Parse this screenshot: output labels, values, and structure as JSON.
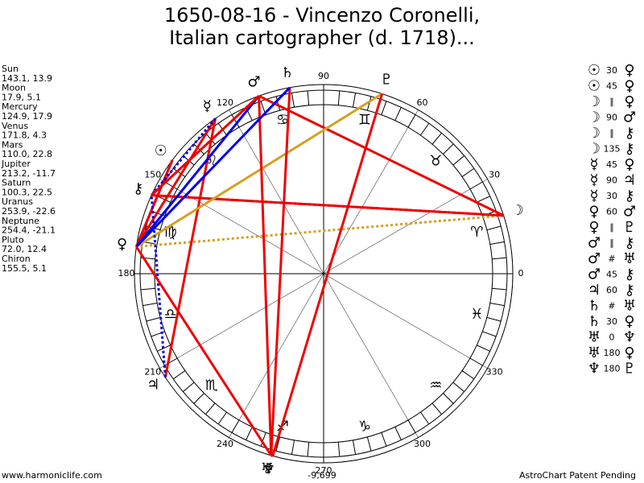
{
  "title": [
    "1650-08-16 - Vincenzo Coronelli,",
    "Italian cartographer (d. 1718)..."
  ],
  "planets": [
    {
      "name": "Sun",
      "glyph": "☉",
      "pos": "143.1, 13.9"
    },
    {
      "name": "Moon",
      "glyph": "☽",
      "pos": "17.9, 5.1"
    },
    {
      "name": "Mercury",
      "glyph": "☿",
      "pos": "124.9, 17.9"
    },
    {
      "name": "Venus",
      "glyph": "♀",
      "pos": "171.8, 4.3"
    },
    {
      "name": "Mars",
      "glyph": "♂",
      "pos": "110.0, 22.8"
    },
    {
      "name": "Jupiter",
      "glyph": "♃",
      "pos": "213.2, -11.7"
    },
    {
      "name": "Saturn",
      "glyph": "♄",
      "pos": "100.3, 22.5"
    },
    {
      "name": "Uranus",
      "glyph": "♅",
      "pos": "253.9, -22.6"
    },
    {
      "name": "Neptune",
      "glyph": "♆",
      "pos": "254.4, -21.1"
    },
    {
      "name": "Pluto",
      "glyph": "♇",
      "pos": "72.0, 12.4"
    },
    {
      "name": "Chiron",
      "glyph": "⚷",
      "pos": "155.5, 5.1"
    }
  ],
  "aspects": [
    {
      "a": "☉",
      "aspect": "30",
      "b": "♀",
      "color": "#0000ee"
    },
    {
      "a": "☉",
      "aspect": "45",
      "b": "♀",
      "color": "#ee0000"
    },
    {
      "a": "☽",
      "aspect": "∥",
      "b": "♀",
      "color": "#d4a020"
    },
    {
      "a": "☽",
      "aspect": "90",
      "b": "♂",
      "color": "#ee0000"
    },
    {
      "a": "☽",
      "aspect": "∥",
      "b": "⚷",
      "color": "#ee0000"
    },
    {
      "a": "☽",
      "aspect": "135",
      "b": "⚷",
      "color": "#ee0000"
    },
    {
      "a": "☿",
      "aspect": "45",
      "b": "♀",
      "color": "#ee0000"
    },
    {
      "a": "☿",
      "aspect": "90",
      "b": "♃",
      "color": "#ee0000"
    },
    {
      "a": "☿",
      "aspect": "30",
      "b": "⚷",
      "color": "#0000ee"
    },
    {
      "a": "♀",
      "aspect": "60",
      "b": "♂",
      "color": "#0000ee"
    },
    {
      "a": "♀",
      "aspect": "∥",
      "b": "♇",
      "color": "#d4a020"
    },
    {
      "a": "♂",
      "aspect": "∥",
      "b": "⚷",
      "color": "#ee0000"
    },
    {
      "a": "♂",
      "aspect": "#",
      "b": "♅",
      "color": "#ee0000"
    },
    {
      "a": "♂",
      "aspect": "45",
      "b": "⚷",
      "color": "#ee0000"
    },
    {
      "a": "♃",
      "aspect": "60",
      "b": "⚷",
      "color": "#0000ee"
    },
    {
      "a": "♄",
      "aspect": "#",
      "b": "♅",
      "color": "#ee0000"
    },
    {
      "a": "♄",
      "aspect": "30",
      "b": "♀",
      "color": "#0000ee"
    },
    {
      "a": "♅",
      "aspect": "0",
      "b": "♆",
      "color": "#ee0000"
    },
    {
      "a": "♅",
      "aspect": "180",
      "b": "♀",
      "color": "#ee0000"
    },
    {
      "a": "♆",
      "aspect": "180",
      "b": "♇",
      "color": "#ee0000"
    }
  ],
  "degrees": [
    0,
    30,
    60,
    90,
    120,
    150,
    180,
    210,
    240,
    270,
    300,
    330
  ],
  "signs": [
    "♈",
    "♉",
    "♊",
    "♋",
    "♌",
    "♍",
    "♎",
    "♏",
    "♐",
    "♑",
    "♒",
    "♓"
  ],
  "footer": {
    "site": "www.harmoniclife.com",
    "score": "-9,699",
    "note": "AstroChart Patent Pending"
  }
}
